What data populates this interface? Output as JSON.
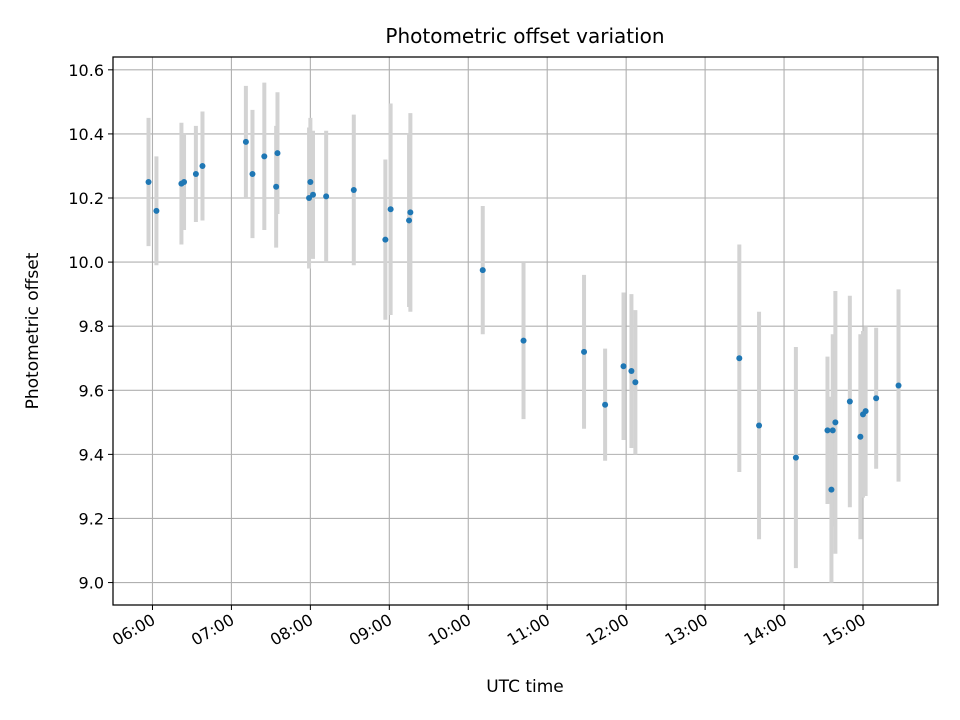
{
  "chart_data": {
    "type": "scatter",
    "title": "Photometric offset variation",
    "xlabel": "UTC time",
    "ylabel": "Photometric offset",
    "grid": true,
    "xlim": [
      "05:30",
      "15:57"
    ],
    "ylim": [
      8.93,
      10.64
    ],
    "x_ticks": [
      "06:00",
      "07:00",
      "08:00",
      "09:00",
      "10:00",
      "11:00",
      "12:00",
      "13:00",
      "14:00",
      "15:00"
    ],
    "y_ticks": [
      "9.0",
      "9.2",
      "9.4",
      "9.6",
      "9.8",
      "10.0",
      "10.2",
      "10.4",
      "10.6"
    ],
    "point_color": "#1f77b4",
    "errorbar_color": "#d3d3d3",
    "series": [
      {
        "points": [
          {
            "t": "05:57",
            "y": 10.25,
            "err": 0.2
          },
          {
            "t": "06:03",
            "y": 10.16,
            "err": 0.17
          },
          {
            "t": "06:22",
            "y": 10.245,
            "err": 0.19
          },
          {
            "t": "06:24",
            "y": 10.25,
            "err": 0.15
          },
          {
            "t": "06:33",
            "y": 10.275,
            "err": 0.15
          },
          {
            "t": "06:38",
            "y": 10.3,
            "err": 0.17
          },
          {
            "t": "07:11",
            "y": 10.375,
            "err": 0.175
          },
          {
            "t": "07:16",
            "y": 10.275,
            "err": 0.2
          },
          {
            "t": "07:25",
            "y": 10.33,
            "err": 0.23
          },
          {
            "t": "07:34",
            "y": 10.235,
            "err": 0.19
          },
          {
            "t": "07:35",
            "y": 10.34,
            "err": 0.19
          },
          {
            "t": "07:59",
            "y": 10.2,
            "err": 0.22
          },
          {
            "t": "08:00",
            "y": 10.25,
            "err": 0.2
          },
          {
            "t": "08:02",
            "y": 10.21,
            "err": 0.2
          },
          {
            "t": "08:12",
            "y": 10.205,
            "err": 0.205
          },
          {
            "t": "08:33",
            "y": 10.225,
            "err": 0.235
          },
          {
            "t": "08:57",
            "y": 10.07,
            "err": 0.25
          },
          {
            "t": "09:01",
            "y": 10.165,
            "err": 0.33
          },
          {
            "t": "09:15",
            "y": 10.13,
            "err": 0.27
          },
          {
            "t": "09:16",
            "y": 10.155,
            "err": 0.31
          },
          {
            "t": "10:11",
            "y": 9.975,
            "err": 0.2
          },
          {
            "t": "10:42",
            "y": 9.755,
            "err": 0.245
          },
          {
            "t": "11:28",
            "y": 9.72,
            "err": 0.24
          },
          {
            "t": "11:44",
            "y": 9.555,
            "err": 0.175
          },
          {
            "t": "11:58",
            "y": 9.675,
            "err": 0.23
          },
          {
            "t": "12:04",
            "y": 9.66,
            "err": 0.24
          },
          {
            "t": "12:07",
            "y": 9.625,
            "err": 0.225
          },
          {
            "t": "13:26",
            "y": 9.7,
            "err": 0.355
          },
          {
            "t": "13:41",
            "y": 9.49,
            "err": 0.355
          },
          {
            "t": "14:09",
            "y": 9.39,
            "err": 0.345
          },
          {
            "t": "14:33",
            "y": 9.475,
            "err": 0.23
          },
          {
            "t": "14:36",
            "y": 9.29,
            "err": 0.29
          },
          {
            "t": "14:37",
            "y": 9.475,
            "err": 0.3
          },
          {
            "t": "14:39",
            "y": 9.5,
            "err": 0.41
          },
          {
            "t": "14:50",
            "y": 9.565,
            "err": 0.33
          },
          {
            "t": "14:58",
            "y": 9.455,
            "err": 0.32
          },
          {
            "t": "15:00",
            "y": 9.525,
            "err": 0.26
          },
          {
            "t": "15:02",
            "y": 9.535,
            "err": 0.265
          },
          {
            "t": "15:10",
            "y": 9.575,
            "err": 0.22
          },
          {
            "t": "15:27",
            "y": 9.615,
            "err": 0.3
          }
        ]
      }
    ]
  }
}
